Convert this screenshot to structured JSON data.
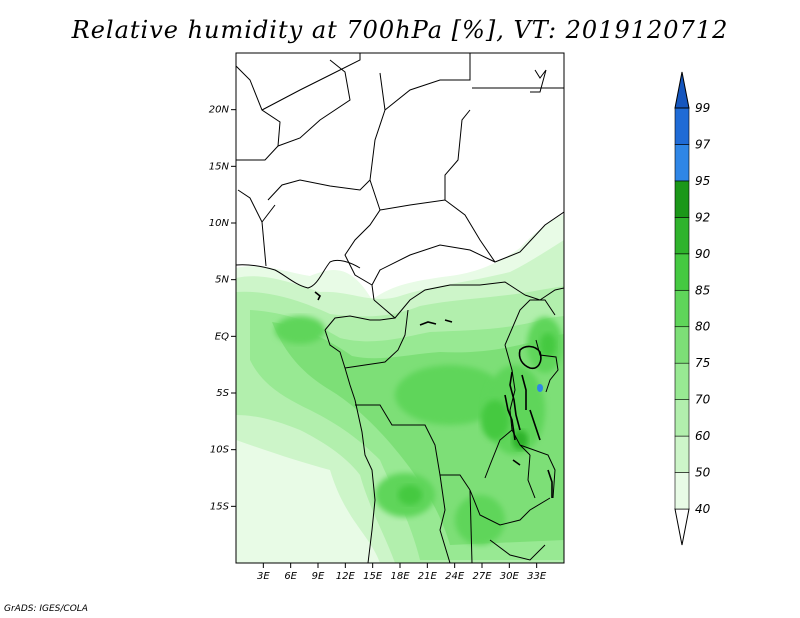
{
  "title": "Relative humidity at 700hPa [%], VT: 2019120712",
  "credit": "GrADS: IGES/COLA",
  "map": {
    "lon_range": [
      0,
      36
    ],
    "lat_range": [
      -20,
      25
    ],
    "lat_ticks": [
      "20N",
      "15N",
      "10N",
      "5N",
      "EQ",
      "5S",
      "10S",
      "15S"
    ],
    "lon_ticks": [
      "3E",
      "6E",
      "9E",
      "12E",
      "15E",
      "18E",
      "21E",
      "24E",
      "27E",
      "30E",
      "33E"
    ]
  },
  "colorbar": {
    "labels": [
      "40",
      "50",
      "60",
      "70",
      "75",
      "80",
      "85",
      "90",
      "92",
      "95",
      "97",
      "99"
    ],
    "colors": [
      "#ffffff",
      "#e8fbe6",
      "#cdf5c9",
      "#b2efad",
      "#98e993",
      "#7ddf77",
      "#5fd55a",
      "#45c941",
      "#2fb32c",
      "#1b9718",
      "#2f86e6",
      "#1f6bd6",
      "#1556be"
    ]
  }
}
